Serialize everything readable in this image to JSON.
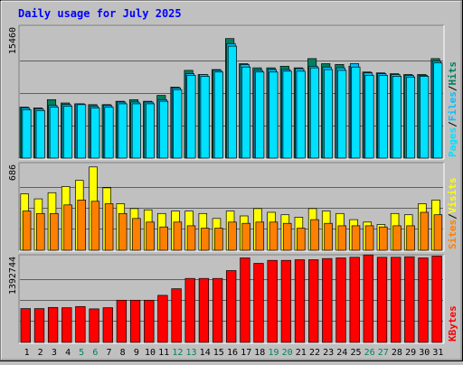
{
  "title": "Daily usage for July 2025",
  "colors": {
    "background": "#c0c0c0",
    "title": "#0000ff",
    "hits": "#00805c",
    "files": "#00c0ff",
    "pages": "#00e0ff",
    "visits": "#ffff00",
    "sites": "#ff8000",
    "kbytes": "#ff0000",
    "weekend_label": "#00805c",
    "weekday_label": "#000000"
  },
  "chart_data": [
    {
      "type": "bar",
      "title": "Daily usage for July 2025",
      "panel": "top",
      "ylabel_parts": [
        "Pages",
        "Files",
        "Hits"
      ],
      "ymax_label": "15460",
      "ylim": [
        0,
        15460
      ],
      "x": [
        1,
        2,
        3,
        4,
        5,
        6,
        7,
        8,
        9,
        10,
        11,
        12,
        13,
        14,
        15,
        16,
        17,
        18,
        19,
        20,
        21,
        22,
        23,
        24,
        25,
        26,
        27,
        28,
        29,
        30,
        31
      ],
      "series": [
        {
          "name": "Hits",
          "values": [
            6100,
            6000,
            7000,
            6600,
            6500,
            6400,
            6400,
            6800,
            7000,
            6800,
            7500,
            8500,
            10500,
            10000,
            10600,
            14300,
            11300,
            10800,
            10800,
            11000,
            10800,
            11900,
            11300,
            11200,
            11000,
            10300,
            10200,
            10100,
            10000,
            10000,
            11900
          ]
        },
        {
          "name": "Files",
          "values": [
            6000,
            5900,
            6300,
            6400,
            6500,
            6200,
            6300,
            6700,
            6700,
            6700,
            7000,
            8400,
            10100,
            10000,
            10500,
            13700,
            11200,
            10500,
            10600,
            10600,
            10700,
            11000,
            10900,
            10800,
            11300,
            10200,
            10100,
            10000,
            9900,
            9900,
            11600
          ]
        },
        {
          "name": "Pages",
          "values": [
            5800,
            5700,
            6100,
            6200,
            6400,
            6000,
            6100,
            6500,
            6500,
            6500,
            6800,
            8200,
            9900,
            9800,
            10300,
            13400,
            10900,
            10300,
            10300,
            10400,
            10400,
            10800,
            10600,
            10500,
            10900,
            9900,
            9900,
            9800,
            9700,
            9800,
            11400
          ]
        }
      ]
    },
    {
      "type": "bar",
      "panel": "middle",
      "ylabel_parts": [
        "Sites",
        "Visits"
      ],
      "ymax_label": "686",
      "ylim": [
        0,
        686
      ],
      "x": [
        1,
        2,
        3,
        4,
        5,
        6,
        7,
        8,
        9,
        10,
        11,
        12,
        13,
        14,
        15,
        16,
        17,
        18,
        19,
        20,
        21,
        22,
        23,
        24,
        25,
        26,
        27,
        28,
        29,
        30,
        31
      ],
      "series": [
        {
          "name": "Visits",
          "values": [
            460,
            420,
            470,
            520,
            570,
            680,
            510,
            380,
            340,
            330,
            300,
            320,
            320,
            300,
            260,
            320,
            280,
            340,
            310,
            290,
            270,
            340,
            320,
            300,
            250,
            230,
            210,
            300,
            290,
            380,
            410
          ]
        },
        {
          "name": "Sites",
          "values": [
            320,
            300,
            300,
            370,
            410,
            400,
            380,
            300,
            260,
            230,
            190,
            230,
            200,
            180,
            180,
            230,
            220,
            230,
            230,
            220,
            180,
            250,
            220,
            200,
            200,
            200,
            190,
            200,
            200,
            310,
            290
          ]
        }
      ]
    },
    {
      "type": "bar",
      "panel": "bottom",
      "ylabel_parts": [
        "KBytes"
      ],
      "ymax_label": "1392744",
      "ylim": [
        0,
        1392744
      ],
      "x": [
        1,
        2,
        3,
        4,
        5,
        6,
        7,
        8,
        9,
        10,
        11,
        12,
        13,
        14,
        15,
        16,
        17,
        18,
        19,
        20,
        21,
        22,
        23,
        24,
        25,
        26,
        27,
        28,
        29,
        30,
        31
      ],
      "series": [
        {
          "name": "KBytes",
          "values": [
            560000,
            560000,
            580000,
            575000,
            595000,
            555000,
            575000,
            700000,
            700000,
            700000,
            780000,
            890000,
            1060000,
            1060000,
            1060000,
            1190000,
            1400000,
            1310000,
            1360000,
            1360000,
            1370000,
            1370000,
            1390000,
            1400000,
            1410000,
            1450000,
            1410000,
            1410000,
            1420000,
            1400000,
            1430000
          ]
        }
      ]
    }
  ],
  "x_axis": {
    "labels": [
      "1",
      "2",
      "3",
      "4",
      "5",
      "6",
      "7",
      "8",
      "9",
      "10",
      "11",
      "12",
      "13",
      "14",
      "15",
      "16",
      "17",
      "18",
      "19",
      "20",
      "21",
      "22",
      "23",
      "24",
      "25",
      "26",
      "27",
      "28",
      "29",
      "30",
      "31"
    ],
    "weekend_days": [
      5,
      6,
      12,
      13,
      19,
      20,
      26,
      27
    ]
  }
}
